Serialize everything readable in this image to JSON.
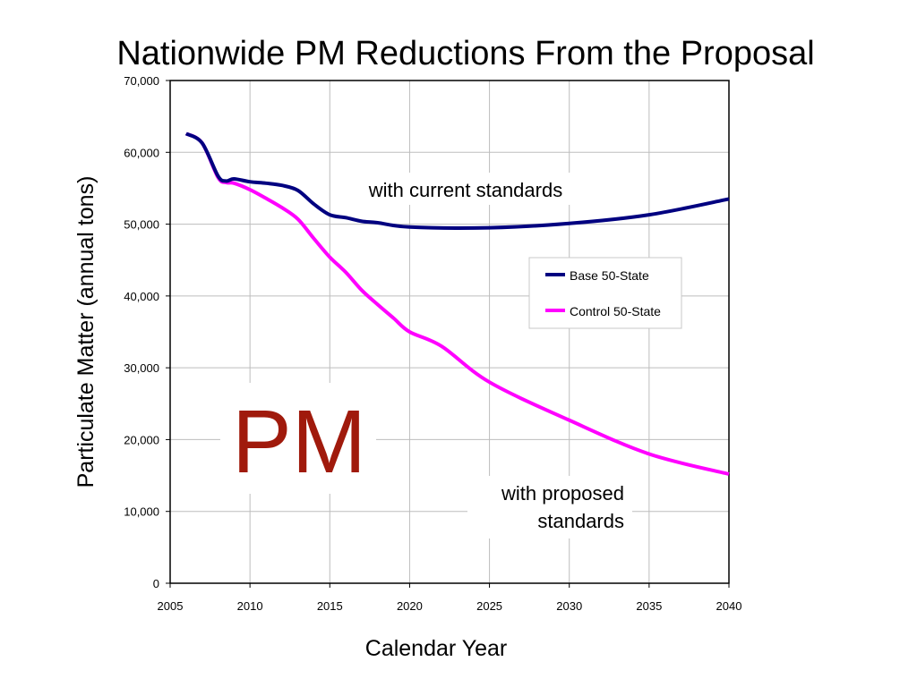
{
  "chart_data": {
    "type": "line",
    "title": "Nationwide PM Reductions From the Proposal",
    "xlabel": "Calendar Year",
    "ylabel": "Particulate Matter (annual tons)",
    "xlim": [
      2005,
      2040
    ],
    "ylim": [
      0,
      70000
    ],
    "xticks": [
      2005,
      2010,
      2015,
      2020,
      2025,
      2030,
      2035,
      2040
    ],
    "yticks": [
      0,
      10000,
      20000,
      30000,
      40000,
      50000,
      60000,
      70000
    ],
    "ytick_labels": [
      "0",
      "10,000",
      "20,000",
      "30,000",
      "40,000",
      "50,000",
      "60,000",
      "70,000"
    ],
    "grid": true,
    "legend_position": "right",
    "series": [
      {
        "name": "Base 50-State",
        "color": "#000080",
        "x": [
          2006,
          2007,
          2008,
          2008.5,
          2009,
          2010,
          2011,
          2012,
          2013,
          2014,
          2015,
          2016,
          2017,
          2018,
          2020,
          2025,
          2030,
          2035,
          2040
        ],
        "y": [
          62600,
          61300,
          56700,
          56000,
          56300,
          55900,
          55700,
          55400,
          54700,
          52800,
          51300,
          50900,
          50400,
          50200,
          49600,
          49500,
          50100,
          51300,
          53500
        ]
      },
      {
        "name": "Control 50-State",
        "color": "#ff00ff",
        "x": [
          2006,
          2007,
          2008,
          2008.5,
          2009,
          2010,
          2011,
          2012,
          2013,
          2014,
          2015,
          2016,
          2017,
          2018,
          2019,
          2020,
          2022,
          2025,
          2030,
          2035,
          2040
        ],
        "y": [
          62600,
          61300,
          56500,
          55800,
          55700,
          54800,
          53600,
          52300,
          50700,
          48000,
          45400,
          43300,
          40800,
          38800,
          36900,
          35000,
          33000,
          28000,
          22700,
          18000,
          15200
        ]
      }
    ],
    "annotations": {
      "current": "with current standards",
      "proposed_line1": "with proposed",
      "proposed_line2": "standards",
      "pm": "PM"
    }
  }
}
